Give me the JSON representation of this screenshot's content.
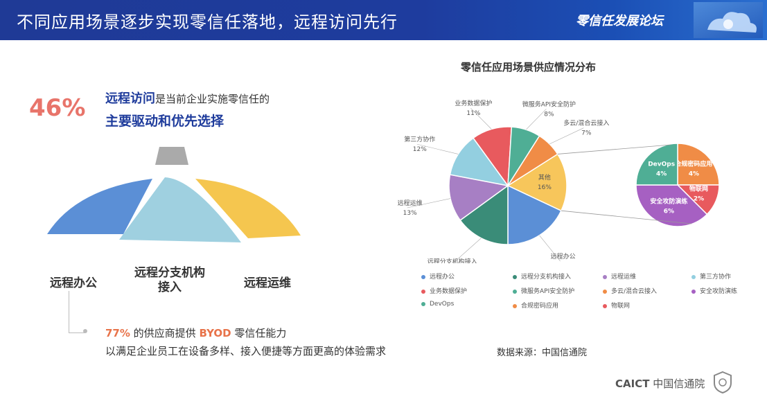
{
  "header": {
    "title": "不同应用场景逐步实现零信任落地，远程访问先行",
    "forum_name": "零信任发展论坛"
  },
  "left": {
    "percent": "46%",
    "line1_highlight": "远程访问",
    "line1_rest": "是当前企业实施零信任的",
    "line2": "主要驱动和优先选择",
    "umbrella_labels": [
      "远程办公",
      "远程分支机构接入",
      "远程运维"
    ],
    "byod_percent": "77%",
    "byod_mid": " 的供应商提供 ",
    "byod_word": "BYOD",
    "byod_end": " 零信任能力",
    "byod_line2": "以满足企业员工在设备多样、接入便捷等方面更高的体验需求"
  },
  "colors": {
    "umbrella_blue": "#5b8fd6",
    "umbrella_light_blue": "#9fd0e0",
    "umbrella_yellow": "#f5c64f",
    "handle_gray": "#aaaaaa"
  },
  "chart_data": {
    "type": "pie",
    "title": "零信任应用场景供应情况分布",
    "main_slices": [
      {
        "name": "远程办公",
        "value": 18,
        "label": "18%",
        "color": "#5b8fd6"
      },
      {
        "name": "远程分支机构接入",
        "value": 15,
        "label": "15%",
        "color": "#3a8c78"
      },
      {
        "name": "远程运维",
        "value": 13,
        "label": "13%",
        "color": "#a77fc4"
      },
      {
        "name": "第三方协作",
        "value": 12,
        "label": "12%",
        "color": "#93cfe0"
      },
      {
        "name": "业务数据保护",
        "value": 11,
        "label": "11%",
        "color": "#e85a5e"
      },
      {
        "name": "微服务API安全防护",
        "value": 8,
        "label": "8%",
        "color": "#4fae95"
      },
      {
        "name": "多云/混合云接入",
        "value": 7,
        "label": "7%",
        "color": "#f08c46"
      },
      {
        "name": "其他",
        "value": 16,
        "label": "16%",
        "color": "#f7c65b"
      }
    ],
    "sub_slices": [
      {
        "name": "合规密码应用",
        "value": 4,
        "label": "4%",
        "color": "#f08c46"
      },
      {
        "name": "物联网",
        "value": 2,
        "label": "2%",
        "color": "#e85a5e"
      },
      {
        "name": "安全攻防演练",
        "value": 6,
        "label": "6%",
        "color": "#a660c2"
      },
      {
        "name": "DevOps",
        "value": 4,
        "label": "4%",
        "color": "#4fae95"
      }
    ],
    "legend": [
      {
        "name": "远程办公",
        "color": "#5b8fd6"
      },
      {
        "name": "远程分支机构接入",
        "color": "#3a8c78"
      },
      {
        "name": "远程运维",
        "color": "#a77fc4"
      },
      {
        "name": "第三方协作",
        "color": "#93cfe0"
      },
      {
        "name": "业务数据保护",
        "color": "#e85a5e"
      },
      {
        "name": "微服务API安全防护",
        "color": "#4fae95"
      },
      {
        "name": "多云/混合云接入",
        "color": "#f08c46"
      },
      {
        "name": "安全攻防演练",
        "color": "#a660c2"
      },
      {
        "name": "DevOps",
        "color": "#4fae95"
      },
      {
        "name": "合规密码应用",
        "color": "#f08c46"
      },
      {
        "name": "物联网",
        "color": "#e85a5e"
      }
    ],
    "legend_position": "bottom"
  },
  "footer": {
    "source": "数据来源：中国信通院",
    "org_abbr": "CAICT",
    "org_name": "中国信通院"
  }
}
